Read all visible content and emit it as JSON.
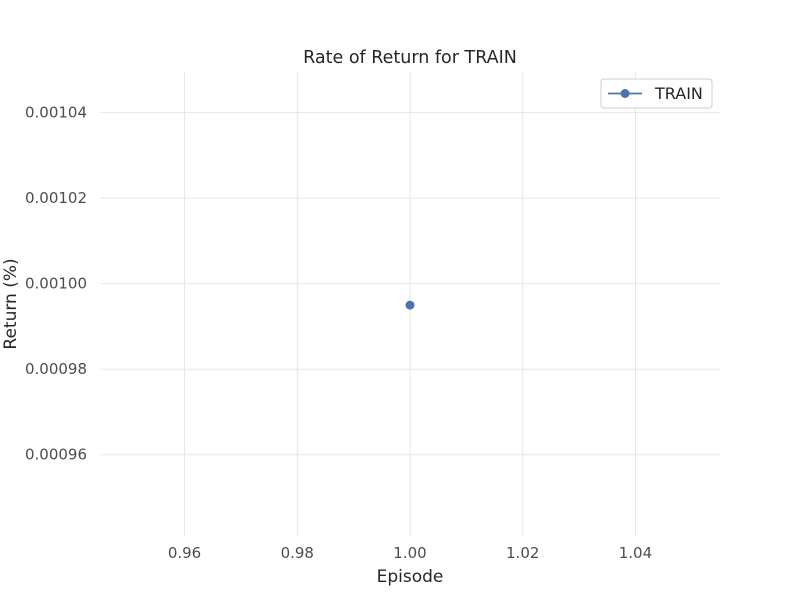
{
  "chart_data": {
    "type": "line",
    "title": "Rate of Return for TRAIN",
    "xlabel": "Episode",
    "ylabel": "Return (%)",
    "xlim": [
      0.945,
      1.055
    ],
    "ylim": [
      0.000941,
      0.0010495
    ],
    "xticks": [
      0.96,
      0.98,
      1.0,
      1.02,
      1.04
    ],
    "xtick_labels": [
      "0.96",
      "0.98",
      "1.00",
      "1.02",
      "1.04"
    ],
    "yticks": [
      0.00096,
      0.00098,
      0.001,
      0.00102,
      0.00104
    ],
    "ytick_labels": [
      "0.00096",
      "0.00098",
      "0.00100",
      "0.00102",
      "0.00104"
    ],
    "grid": true,
    "legend_position": "top-right",
    "series": [
      {
        "name": "TRAIN",
        "color": "#4c72b0",
        "marker": "circle",
        "x": [
          1.0
        ],
        "y": [
          0.000995
        ]
      }
    ]
  }
}
